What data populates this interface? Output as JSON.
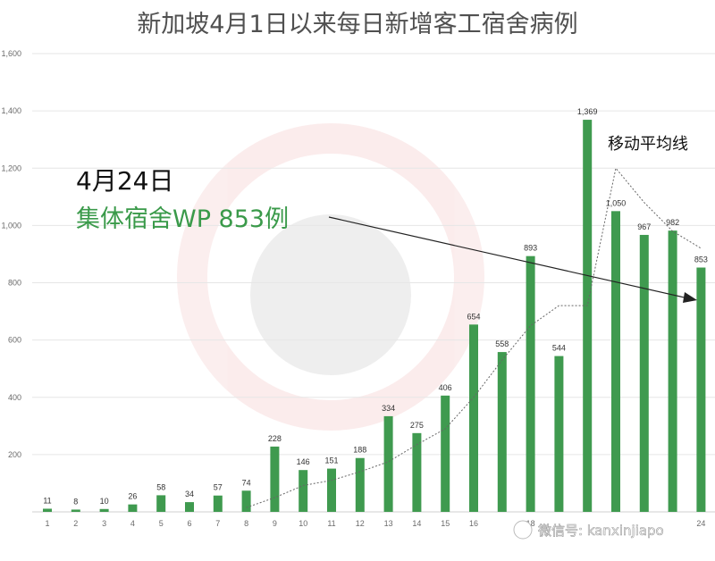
{
  "chart_data": {
    "type": "bar",
    "title": "新加坡4月1日以来每日新增客工宿舍病例",
    "categories": [
      "1",
      "2",
      "3",
      "4",
      "5",
      "6",
      "7",
      "8",
      "9",
      "10",
      "11",
      "12",
      "13",
      "14",
      "15",
      "16",
      "17",
      "18",
      "19",
      "20",
      "21",
      "22",
      "23",
      "24"
    ],
    "category_labels": [
      "1",
      "2",
      "3",
      "4",
      "5",
      "6",
      "7",
      "8",
      "9",
      "10",
      "11",
      "12",
      "13",
      "14",
      "15",
      "16",
      "",
      "18",
      "",
      "",
      "",
      "",
      "",
      "24"
    ],
    "values": [
      11,
      8,
      10,
      26,
      58,
      34,
      57,
      74,
      228,
      146,
      151,
      188,
      334,
      275,
      406,
      654,
      558,
      893,
      544,
      1369,
      1050,
      967,
      982,
      853
    ],
    "value_labels": [
      "11",
      "8",
      "10",
      "26",
      "58",
      "34",
      "57",
      "74",
      "228",
      "146",
      "151",
      "188",
      "334",
      "275",
      "406",
      "654",
      "558",
      "893",
      "544",
      "1,369",
      "1,050",
      "967",
      "982",
      "853"
    ],
    "moving_average": [
      null,
      null,
      null,
      null,
      null,
      null,
      null,
      15,
      50,
      92,
      110,
      140,
      175,
      235,
      290,
      400,
      530,
      650,
      720,
      720,
      1200,
      1080,
      980,
      920
    ],
    "ylim": [
      0,
      1600
    ],
    "yticks": [
      0,
      200,
      400,
      600,
      800,
      1000,
      1200,
      1400,
      1600
    ],
    "ytick_labels": [
      "",
      "200",
      "400",
      "600",
      "800",
      "1,000",
      "1,200",
      "1,400",
      "1,600"
    ],
    "grid": true,
    "bar_color": "#3f9a4f",
    "annotations": {
      "date": "4月24日",
      "dorm_cases": "集体宿舍WP 853例",
      "moving_average": "移动平均线"
    }
  },
  "watermark": {
    "account": "微信号: kanxinjiapo"
  }
}
